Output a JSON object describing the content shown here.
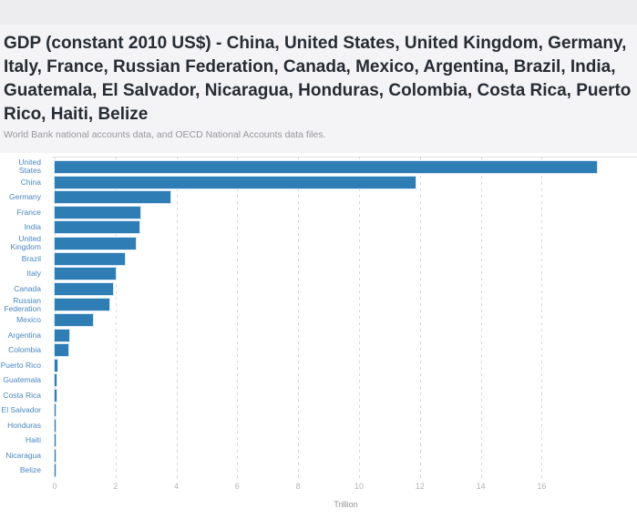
{
  "page": {
    "title": "GDP (constant 2010 US$) - China, United States, United Kingdom, Germany, Italy, France, Russian Federation, Canada, Mexico, Argentina, Brazil, India, Guatemala, El Salvador, Nicaragua, Honduras, Colombia, Costa Rica, Puerto Rico, Haiti, Belize",
    "subtitle": "World Bank national accounts data, and OECD National Accounts data files."
  },
  "colors": {
    "bar": "#2e7db5",
    "category_label": "#4a86c2",
    "tick_label": "#b4b4b8",
    "axis_title": "#8f8f93",
    "title_text": "#262c33",
    "subtitle_text": "#98989c",
    "gridline": "#d7d7db",
    "topbar_bg": "#ededf0",
    "header_bg": "#f4f4f7",
    "chart_bg": "#ffffff"
  },
  "chart_data": {
    "type": "bar",
    "orientation": "horizontal",
    "title": "GDP (constant 2010 US$)",
    "xlabel": "Trillion",
    "ylabel": "",
    "x_ticks": [
      0,
      2,
      4,
      6,
      8,
      10,
      12,
      14,
      16
    ],
    "xlim": [
      0,
      19.1
    ],
    "grid": "vertical-dashed",
    "legend_position": "none",
    "unit": "Trillion (constant 2010 US$)",
    "categories": [
      "United States",
      "China",
      "Germany",
      "France",
      "India",
      "United Kingdom",
      "Brazil",
      "Italy",
      "Canada",
      "Russian Federation",
      "Mexico",
      "Argentina",
      "Colombia",
      "Puerto Rico",
      "Guatemala",
      "Costa Rica",
      "El Salvador",
      "Honduras",
      "Haiti",
      "Nicaragua",
      "Belize"
    ],
    "values": [
      17.8,
      11.85,
      3.8,
      2.8,
      2.77,
      2.67,
      2.32,
      2.02,
      1.92,
      1.79,
      1.26,
      0.47,
      0.44,
      0.1,
      0.06,
      0.05,
      0.025,
      0.02,
      0.013,
      0.012,
      0.003
    ]
  }
}
